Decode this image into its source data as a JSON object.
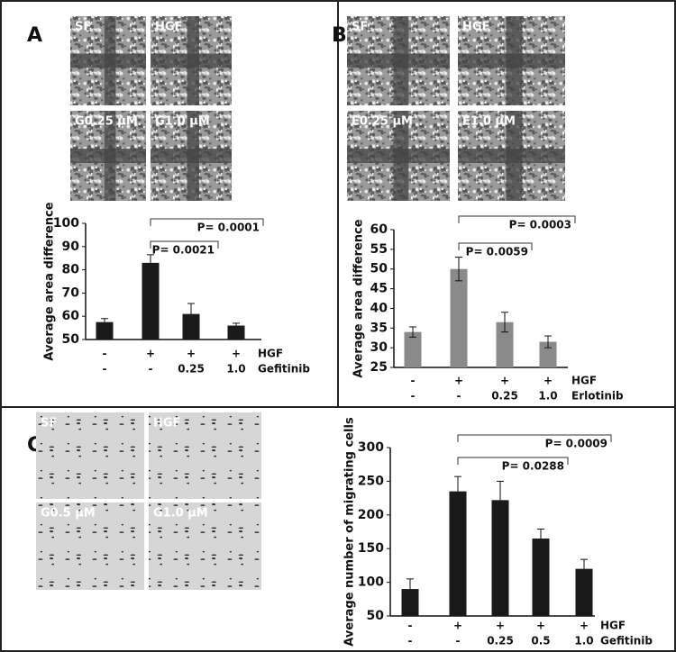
{
  "panels": [
    {
      "letter": "A",
      "images": [
        "SF",
        "HGF",
        "G0.25 μM",
        "G1.0 μM"
      ]
    },
    {
      "letter": "B",
      "images": [
        "SF",
        "HGF",
        "E0.25 μM",
        "E1.0 μM"
      ]
    },
    {
      "letter": "C",
      "images": [
        "SF",
        "HGF",
        "G0.5 μM",
        "G1.0 μM"
      ]
    }
  ],
  "chart_data": [
    {
      "type": "bar",
      "ylabel": "Average area difference",
      "color": "#1a1a1a",
      "label_rows": [
        {
          "name": "HGF",
          "labels": [
            "-",
            "+",
            "+",
            "+"
          ]
        },
        {
          "name": "Gefitinib",
          "labels": [
            "-",
            "-",
            "0.25",
            "1.0"
          ]
        }
      ],
      "values": [
        57.5,
        83,
        61,
        56
      ],
      "errors": [
        1.5,
        3.5,
        4.5,
        1
      ],
      "ylim": [
        50,
        100
      ],
      "yticks": [
        50,
        60,
        70,
        80,
        90,
        100
      ],
      "annotations": [
        {
          "text": "P= 0.0021",
          "from": 1,
          "to": 2
        },
        {
          "text": "P= 0.0001",
          "from": 1,
          "to": 3
        }
      ]
    },
    {
      "type": "bar",
      "ylabel": "Average area difference",
      "color": "#8a8a8a",
      "label_rows": [
        {
          "name": "HGF",
          "labels": [
            "-",
            "+",
            "+",
            "+"
          ]
        },
        {
          "name": "Erlotinib",
          "labels": [
            "-",
            "-",
            "0.25",
            "1.0"
          ]
        }
      ],
      "values": [
        34,
        50,
        36.5,
        31.5
      ],
      "errors": [
        1.3,
        3,
        2.5,
        1.5
      ],
      "ylim": [
        25,
        60
      ],
      "yticks": [
        25,
        30,
        35,
        40,
        45,
        50,
        55,
        60
      ],
      "annotations": [
        {
          "text": "P= 0.0059",
          "from": 1,
          "to": 2
        },
        {
          "text": "P= 0.0003",
          "from": 1,
          "to": 3
        }
      ]
    },
    {
      "type": "bar",
      "ylabel": "Average number of migrating cells",
      "color": "#1a1a1a",
      "label_rows": [
        {
          "name": "HGF",
          "labels": [
            "-",
            "+",
            "+",
            "+",
            "+"
          ]
        },
        {
          "name": "Gefitinib",
          "labels": [
            "-",
            "-",
            "0.25",
            "0.5",
            "1.0"
          ]
        }
      ],
      "values": [
        90,
        235,
        222,
        165,
        120
      ],
      "errors": [
        15,
        22,
        28,
        14,
        14
      ],
      "ylim": [
        50,
        300
      ],
      "yticks": [
        50,
        100,
        150,
        200,
        250,
        300
      ],
      "annotations": [
        {
          "text": "P= 0.0288",
          "from": 1,
          "to": 3
        },
        {
          "text": "P= 0.0009",
          "from": 1,
          "to": 4
        }
      ]
    }
  ]
}
